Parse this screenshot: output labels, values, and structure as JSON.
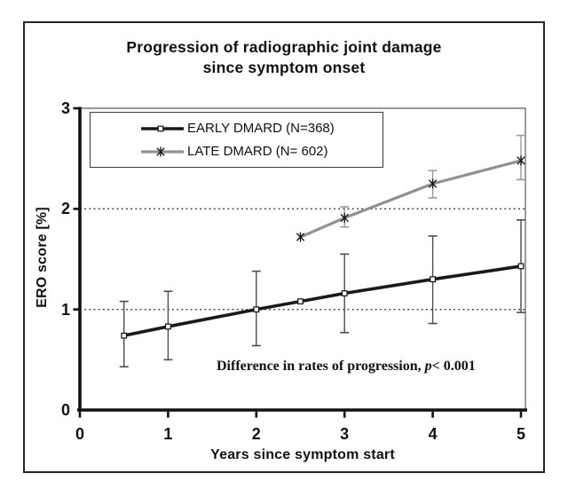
{
  "figure": {
    "title_line1": "Progression of radiographic joint damage",
    "title_line2": "since symptom onset"
  },
  "chart_data": {
    "type": "line",
    "title": "Progression of radiographic joint damage since symptom onset",
    "xlabel": "Years since symptom start",
    "ylabel": "ERO score [%]",
    "xlim": [
      0,
      5.05
    ],
    "ylim": [
      0,
      3
    ],
    "x_ticks": [
      0,
      1,
      2,
      3,
      4,
      5
    ],
    "y_ticks": [
      0,
      1,
      2,
      3
    ],
    "gridlines_y": [
      1,
      2
    ],
    "grid_style": "dotted",
    "legend_position": "top-left-inside",
    "annotation": {
      "text_before_italic": "Difference in rates of progression, ",
      "italic": "p",
      "text_after_italic": "< 0.001"
    },
    "series": [
      {
        "name": "EARLY DMARD (N=368)",
        "color": "#1a1a1a",
        "marker": "open-square",
        "marker_color": "#111111",
        "line_width": 3.6,
        "error_color": "#4d4d4d",
        "x": [
          0.5,
          1,
          2,
          2.5,
          3,
          4,
          5
        ],
        "y": [
          0.74,
          0.83,
          1.0,
          1.08,
          1.16,
          1.3,
          1.43
        ],
        "err_low": [
          0.43,
          0.5,
          0.64,
          null,
          0.77,
          0.86,
          0.97
        ],
        "err_high": [
          1.08,
          1.18,
          1.38,
          null,
          1.55,
          1.73,
          1.89
        ]
      },
      {
        "name": "LATE DMARD (N= 602)",
        "color": "#919191",
        "marker": "asterisk",
        "marker_color": "#1a1a1a",
        "line_width": 3.2,
        "error_color": "#9a9a9a",
        "x": [
          2.5,
          3,
          4,
          5
        ],
        "y": [
          1.72,
          1.91,
          2.25,
          2.48
        ],
        "err_low": [
          null,
          1.82,
          2.11,
          2.29
        ],
        "err_high": [
          null,
          2.02,
          2.38,
          2.73
        ]
      }
    ]
  }
}
